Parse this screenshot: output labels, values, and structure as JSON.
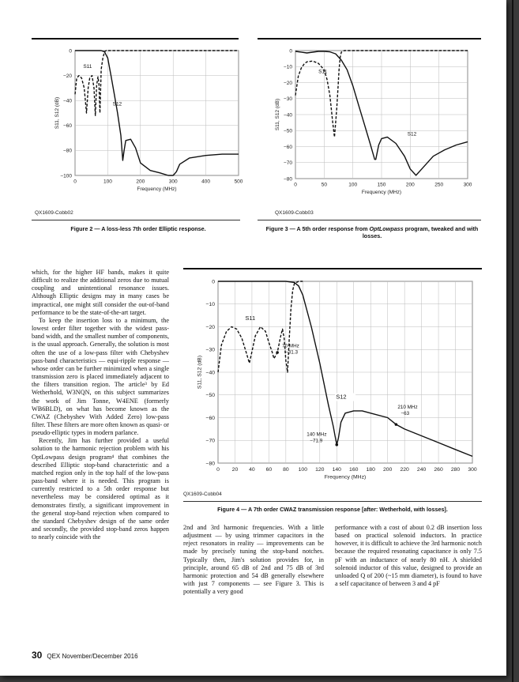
{
  "figures": [
    {
      "id_label": "QX1609-Cobb02",
      "caption": "Figure 2 — A loss-less 7th order Elliptic response.",
      "chart": {
        "xlabel": "Frequency (MHz)",
        "ylabel": "S11, S12 (dB)",
        "xticks": [
          "0",
          "100",
          "200",
          "300",
          "400",
          "500"
        ],
        "yticks": [
          "0",
          "−20",
          "−40",
          "−60",
          "−80",
          "−100"
        ],
        "series_labels": [
          "S11",
          "S12"
        ]
      }
    },
    {
      "id_label": "QX1609-Cobb03",
      "caption_pre": "Figure 3 — A 5th order response from ",
      "caption_em": "OptLowpass",
      "caption_post": " program, tweaked and with losses.",
      "chart": {
        "xlabel": "Frequency (MHz)",
        "ylabel": "S11, S12 (dB)",
        "xticks": [
          "0",
          "50",
          "100",
          "150",
          "200",
          "250",
          "300"
        ],
        "yticks": [
          "0",
          "−10",
          "−20",
          "−30",
          "−40",
          "−50",
          "−60",
          "−70",
          "−80"
        ],
        "series_labels": [
          "S11",
          "S12"
        ]
      }
    },
    {
      "id_label": "QX1609-Cobb04",
      "caption": "Figure 4 — A 7th order CWAZ transmission response [after: Wetherhold, with losses].",
      "chart": {
        "xlabel": "Frequency (MHz)",
        "ylabel": "S11, S12 (dB)",
        "xticks": [
          "0",
          "20",
          "40",
          "60",
          "80",
          "100",
          "120",
          "140",
          "160",
          "180",
          "200",
          "220",
          "240",
          "260",
          "280",
          "300"
        ],
        "yticks": [
          "0",
          "−10",
          "−20",
          "−30",
          "−40",
          "−50",
          "−60",
          "−70",
          "−80"
        ],
        "series_labels": [
          "S11",
          "S12"
        ],
        "annotations": [
          {
            "l1": "70 MHz",
            "l2": "−31.3"
          },
          {
            "l1": "140 MHz",
            "l2": "−71.9"
          },
          {
            "l1": "210 MHz",
            "l2": "−63"
          }
        ]
      }
    }
  ],
  "chart_data": [
    {
      "type": "line",
      "title": "",
      "xlabel": "Frequency (MHz)",
      "ylabel": "S11, S12 (dB)",
      "xlim": [
        0,
        500
      ],
      "ylim": [
        -100,
        0
      ],
      "series": [
        {
          "name": "S11",
          "x": [
            0,
            5,
            12,
            20,
            28,
            35,
            40,
            45,
            52,
            58,
            62,
            66,
            70,
            73,
            76,
            80,
            85,
            90,
            95,
            100,
            120,
            200,
            300,
            400,
            500
          ],
          "y": [
            -35,
            -22,
            -20,
            -22,
            -30,
            -50,
            -30,
            -22,
            -20,
            -30,
            -52,
            -28,
            -21,
            -26,
            -50,
            -15,
            -6,
            -1,
            0,
            0,
            0,
            0,
            0,
            0,
            0
          ]
        },
        {
          "name": "S12",
          "x": [
            0,
            50,
            80,
            90,
            100,
            110,
            120,
            130,
            140,
            146,
            150,
            155,
            170,
            185,
            200,
            230,
            260,
            285,
            300,
            310,
            320,
            350,
            400,
            450,
            500
          ],
          "y": [
            0,
            0,
            0,
            -1,
            -6,
            -20,
            -35,
            -50,
            -68,
            -88,
            -80,
            -72,
            -71,
            -78,
            -90,
            -96,
            -98,
            -100,
            -100,
            -97,
            -91,
            -86,
            -84,
            -83,
            -83
          ]
        }
      ]
    },
    {
      "type": "line",
      "title": "",
      "xlabel": "Frequency (MHz)",
      "ylabel": "S11, S12 (dB)",
      "xlim": [
        0,
        300
      ],
      "ylim": [
        -80,
        0
      ],
      "series": [
        {
          "name": "S11",
          "x": [
            0,
            5,
            10,
            15,
            20,
            30,
            40,
            50,
            55,
            60,
            65,
            68,
            70,
            72,
            74,
            76,
            78,
            80,
            85,
            90,
            100,
            150,
            200,
            250,
            300
          ],
          "y": [
            -28,
            -16,
            -11,
            -8.5,
            -7,
            -6.5,
            -8,
            -12,
            -18,
            -28,
            -45,
            -54,
            -45,
            -36,
            -24,
            -12,
            -4,
            -1,
            0,
            0,
            0,
            0,
            0,
            0,
            0
          ]
        },
        {
          "name": "S12",
          "x": [
            0,
            20,
            30,
            40,
            50,
            60,
            70,
            80,
            90,
            100,
            110,
            120,
            130,
            138,
            140,
            145,
            150,
            160,
            175,
            190,
            200,
            210,
            220,
            240,
            260,
            280,
            300
          ],
          "y": [
            -0.5,
            -1.5,
            -1,
            -0.5,
            -0.5,
            -0.8,
            -2,
            -6,
            -12,
            -22,
            -34,
            -46,
            -58,
            -68,
            -68,
            -59,
            -55,
            -54,
            -58,
            -66,
            -74,
            -78,
            -74,
            -66,
            -62,
            -59,
            -57
          ]
        }
      ]
    },
    {
      "type": "line",
      "title": "",
      "xlabel": "Frequency (MHz)",
      "ylabel": "S11, S12 (dB)",
      "xlim": [
        0,
        300
      ],
      "ylim": [
        -80,
        0
      ],
      "series": [
        {
          "name": "S11",
          "x": [
            0,
            4,
            10,
            16,
            22,
            28,
            33,
            37,
            40,
            44,
            50,
            56,
            60,
            64,
            66,
            70,
            74,
            76,
            78,
            80,
            82,
            84,
            86,
            88,
            90,
            95,
            100
          ],
          "y": [
            -40,
            -28,
            -22,
            -20,
            -21,
            -25,
            -31,
            -36,
            -31,
            -24,
            -20,
            -22,
            -27,
            -31.3,
            -34,
            -31.3,
            -24,
            -21,
            -25,
            -35,
            -40,
            -25,
            -12,
            -4,
            -1,
            0,
            0
          ]
        },
        {
          "name": "S12",
          "x": [
            0,
            50,
            80,
            90,
            95,
            100,
            110,
            120,
            130,
            136,
            138,
            140,
            142,
            145,
            150,
            160,
            170,
            180,
            200,
            210,
            220,
            240,
            260,
            280,
            300
          ],
          "y": [
            0,
            0,
            0,
            -0.5,
            -2,
            -6,
            -20,
            -36,
            -54,
            -64,
            -68,
            -71.9,
            -69,
            -62,
            -58,
            -57,
            -57,
            -58,
            -60,
            -63,
            -65,
            -68,
            -71,
            -74,
            -77
          ]
        }
      ],
      "annotations": [
        {
          "x": 70,
          "y": -31.3,
          "label": "70 MHz −31.3"
        },
        {
          "x": 140,
          "y": -71.9,
          "label": "140 MHz −71.9"
        },
        {
          "x": 210,
          "y": -63,
          "label": "210 MHz −63"
        }
      ]
    }
  ],
  "text": {
    "col1": [
      "which, for the higher HF bands, makes it quite difficult to realize the additional zeros due to mutual coupling and unintentional resonance issues. Although Elliptic designs may in many cases be impractical, one might still consider the out-of-band performance to be the state-of-the-art target.",
      "To keep the insertion loss to a minimum, the lowest order filter together with the widest pass-band width, and the smallest number of components, is the usual approach. Generally, the solution is most often the use of a low-pass filter with Chebyshev pass-band characteristics — equi-ripple response — whose order can be further minimized when a single transmission zero is placed immediately adjacent to the filters transition region. The article³ by Ed Wetherhold, W3NQN, on this subject summarizes the work of Jim Tonne, W4ENE (formerly WB6BLD), on what has become known as the CWAZ (Chebyshev With Added Zero) low-pass filter. These filters are more often known as quasi- or pseudo-elliptic types in modern parlance.",
      "Recently, Jim has further provided a useful solution to the harmonic rejection problem with his OptLowpass design program⁴ that combines the described Elliptic stop-band characteristic and a matched region only in the top half of the low-pass pass-band where it is needed. This program is currently restricted to a 5th order response but nevertheless may be considered optimal as it demonstrates firstly, a significant improvement in the general stop-band rejection when compared to the standard Chebyshev design of the same order and secondly, the provided stop-band zeros happen to nearly coincide with the"
    ],
    "col2": "2nd and 3rd harmonic frequencies. With a little adjustment — by using trimmer capacitors in the reject resonators in reality — improvements can be made by precisely tuning the stop-band notches. Typically then, Jim's solution provides for, in principle, around 65 dB of 2nd and 75 dB of 3rd harmonic protection and 54 dB generally elsewhere with just 7 components — see Figure 3. This is potentially a very good",
    "col3": "performance with a cost of about 0.2 dB insertion loss based on practical solenoid inductors. In practice however, it is difficult to achieve the 3rd harmonic notch because the required resonating capacitance is only 7.5 pF with an inductance of nearly 80 nH. A shielded solenoid inductor of this value, designed to provide an unloaded Q of 200 (~15 mm diameter), is found to have a self capacitance of between 3 and 4 pF"
  },
  "footer": {
    "page_number": "30",
    "journal": "QEX  November/December 2016"
  }
}
